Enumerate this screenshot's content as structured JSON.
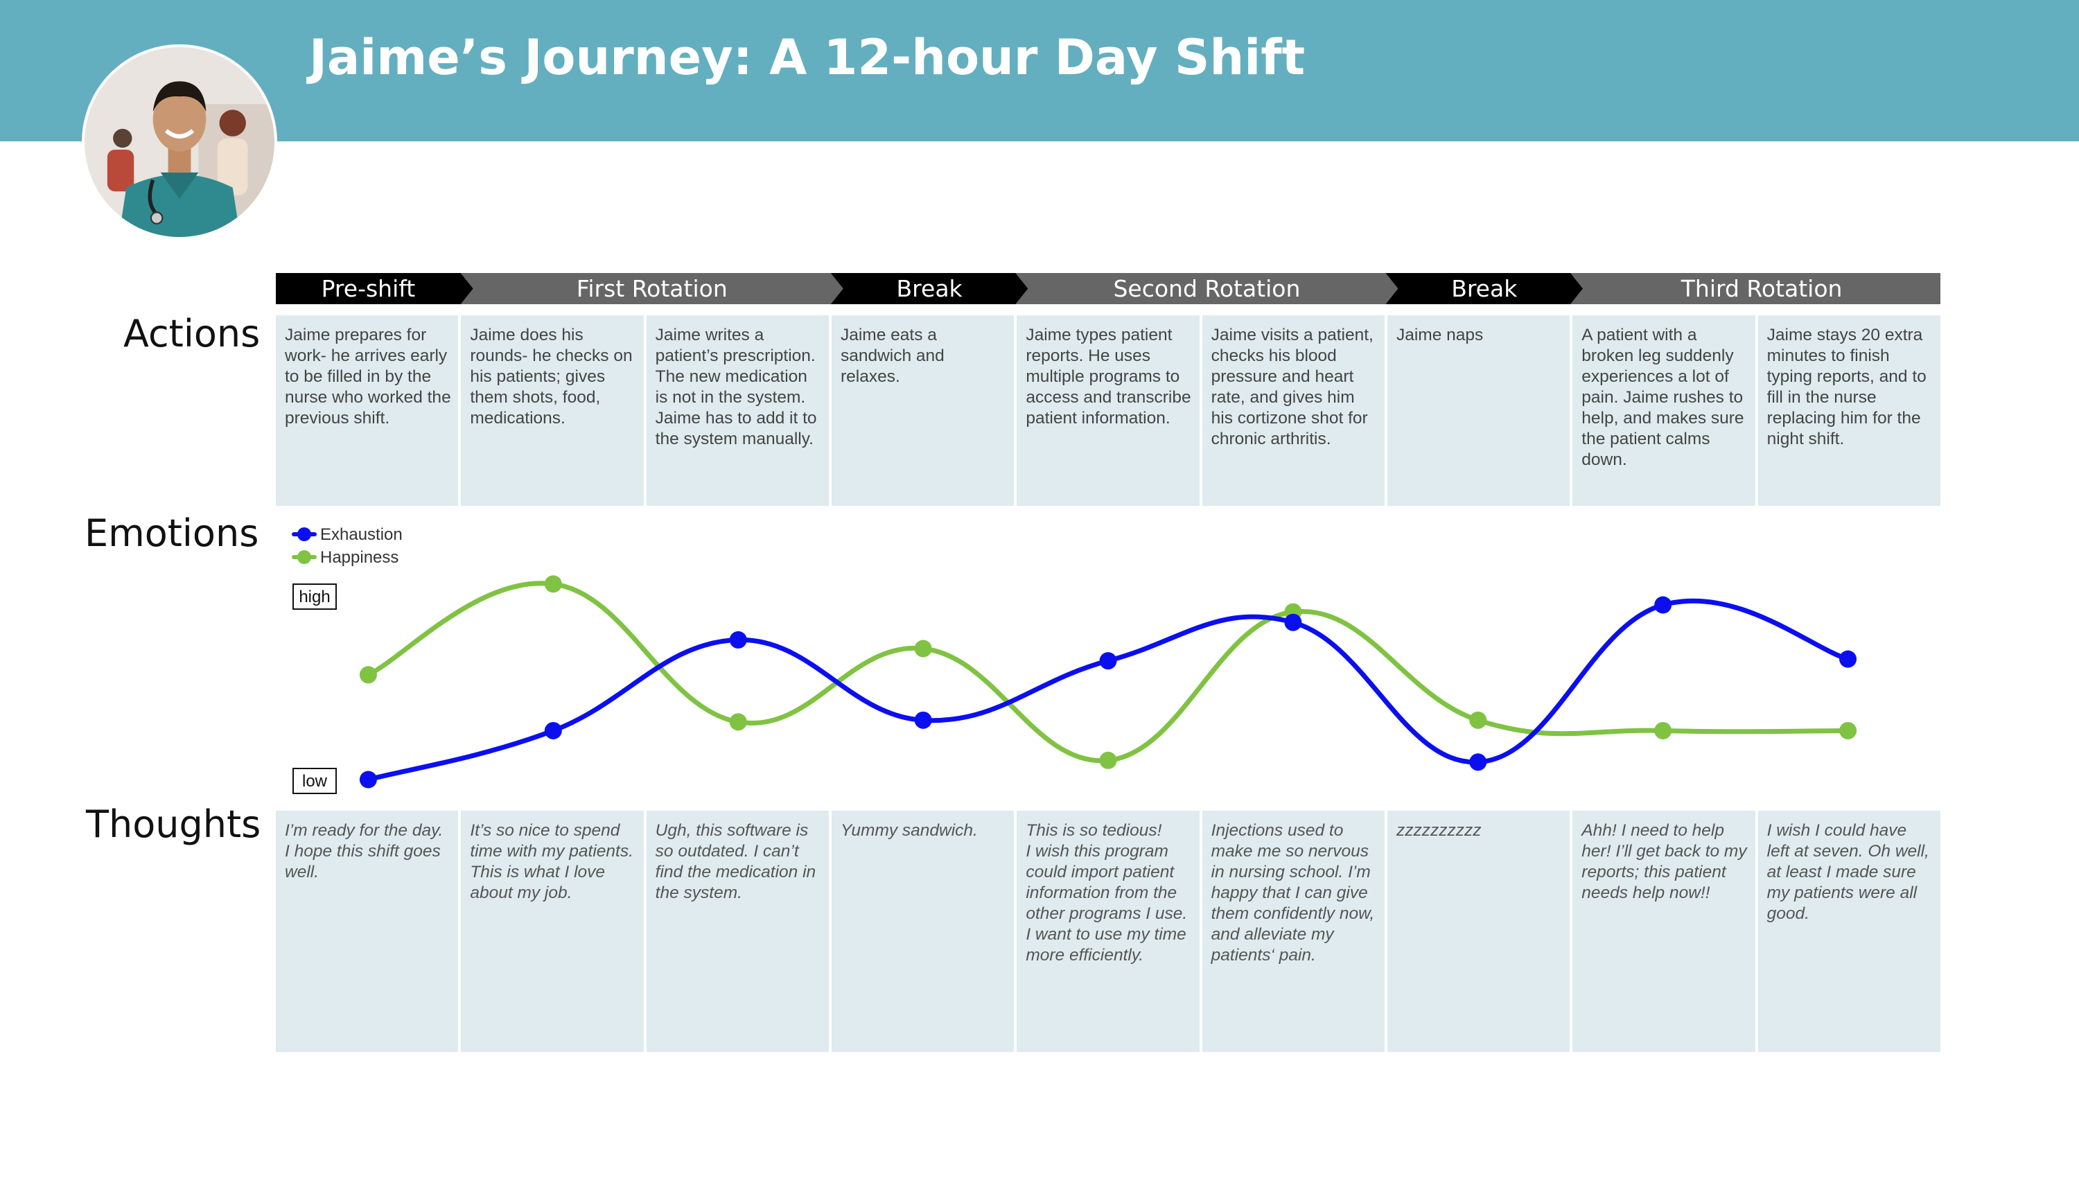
{
  "header": {
    "title": "Jaime’s Journey: A 12-hour Day Shift",
    "brand_color": "#63afbf"
  },
  "phases": [
    {
      "label": "Pre-shift",
      "span": 1,
      "color": "#000000"
    },
    {
      "label": "First Rotation",
      "span": 2,
      "color": "#666666"
    },
    {
      "label": "Break",
      "span": 1,
      "color": "#000000"
    },
    {
      "label": "Second Rotation",
      "span": 2,
      "color": "#666666"
    },
    {
      "label": "Break",
      "span": 1,
      "color": "#000000"
    },
    {
      "label": "Third Rotation",
      "span": 2,
      "color": "#666666"
    }
  ],
  "rows": {
    "actions": "Actions",
    "emotions": "Emotions",
    "thoughts": "Thoughts"
  },
  "actions": [
    "Jaime prepares for work- he arrives early to be filled in by the nurse who worked the previous shift.",
    "Jaime does his rounds- he checks on his patients; gives them shots, food, medications.",
    "Jaime writes a patient’s prescription. The new medication is not in the system. Jaime has to add it to the system manually.",
    "Jaime eats a sandwich and relaxes.",
    "Jaime types patient reports. He uses multiple programs to access and transcribe patient information.",
    "Jaime visits a patient, checks his blood pressure and heart rate, and gives him his cortizone shot for chronic arthritis.",
    "Jaime naps",
    "A patient with a broken leg suddenly experiences a lot of pain. Jaime rushes to help, and makes sure the patient calms down.",
    "Jaime stays 20 extra minutes to finish typing reports, and to fill in the nurse replacing him for the night shift."
  ],
  "thoughts": [
    "I’m ready for the day.\n I hope this shift goes well.",
    "It’s so nice to spend time with my patients. This is what I love about my job.",
    "Ugh, this software is so outdated. I can’t find the medication in the system.",
    "Yummy sandwich.",
    "This is so tedious!\nI wish this program could import patient information from the other programs I use.\nI want to use my time more efficiently.",
    "Injections used to make me so nervous in nursing school. I’m happy that I can give them confidently now, and alleviate my patients‘ pain.",
    "zzzzzzzzzz",
    "Ahh! I need to help her! I’ll get back to my reports; this patient needs help now!!",
    "I wish I could have left at seven. Oh well, at least I made sure my patients were all good."
  ],
  "chart_data": {
    "type": "line",
    "x": [
      1,
      2,
      3,
      4,
      5,
      6,
      7,
      8,
      9
    ],
    "ylim": [
      0,
      1
    ],
    "y_ticks": [
      "low",
      "high"
    ],
    "legend_position": "top-left",
    "series": [
      {
        "name": "Exhaustion",
        "color": "#0b0ff0",
        "values": [
          0.0,
          0.28,
          0.8,
          0.34,
          0.68,
          0.9,
          0.1,
          1.0,
          0.69
        ]
      },
      {
        "name": "Happiness",
        "color": "#80c242",
        "values": [
          0.6,
          1.12,
          0.33,
          0.75,
          0.11,
          0.96,
          0.34,
          0.28,
          0.28
        ]
      }
    ]
  }
}
